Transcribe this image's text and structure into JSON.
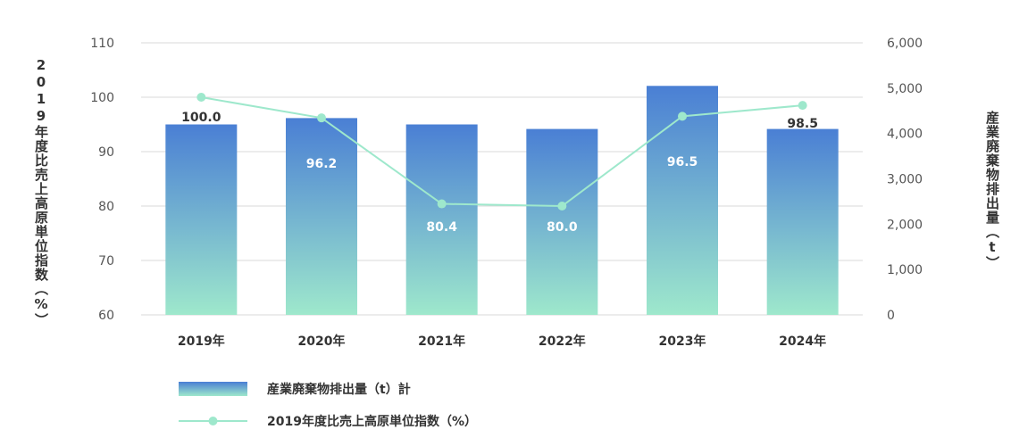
{
  "chart_data": {
    "type": "bar",
    "categories": [
      "2019年",
      "2020年",
      "2021年",
      "2022年",
      "2023年",
      "2024年"
    ],
    "series": [
      {
        "name": "産業廃棄物排出量（t）計",
        "type": "bar",
        "axis": "right",
        "values": [
          4200,
          4340,
          4200,
          4100,
          5050,
          4100
        ],
        "labels": [
          "100.0",
          "96.2",
          "80.4",
          "80.0",
          "96.5",
          "98.5"
        ]
      },
      {
        "name": "2019年度比売上高原単位指数（%）",
        "type": "line",
        "axis": "left",
        "values": [
          100.0,
          96.2,
          80.4,
          80.0,
          96.5,
          98.5
        ]
      }
    ],
    "ylabel_left": "2019年度比売上高原単位指数（%）",
    "ylabel_right": "産業廃棄物排出量（t）",
    "ylim_left": [
      60,
      110
    ],
    "yticks_left": [
      "60",
      "70",
      "80",
      "90",
      "100",
      "110"
    ],
    "ylim_right": [
      0,
      6000
    ],
    "yticks_right": [
      "0",
      "1,000",
      "2,000",
      "3,000",
      "4,000",
      "5,000",
      "6,000"
    ],
    "grid": true,
    "legend_position": "bottom-left"
  },
  "colors": {
    "bar_top": "#4a7fd4",
    "bar_bottom": "#9ee8cc",
    "line": "#9ee8cc",
    "grid": "#d9d9d9"
  }
}
